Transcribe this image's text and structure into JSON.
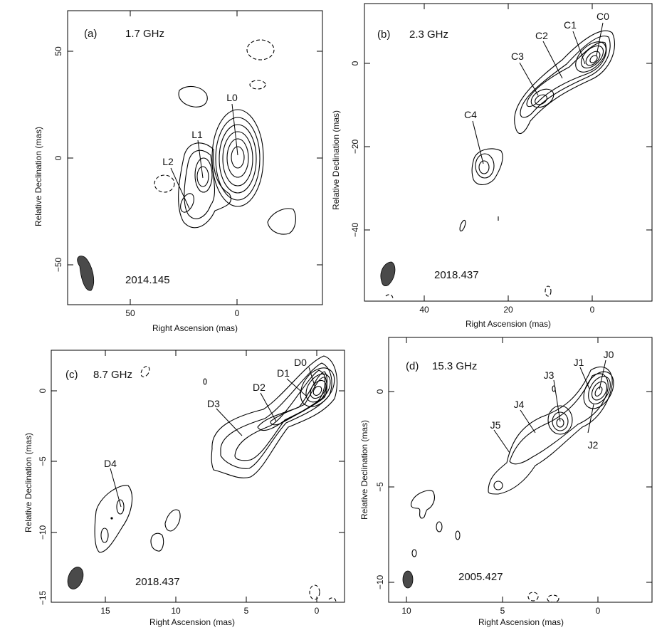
{
  "chart_data": [
    {
      "type": "contour",
      "panel": "(a)",
      "frequency": "1.7 GHz",
      "epoch": "2014.145",
      "xlabel": "Right Ascension  (mas)",
      "ylabel": "Relative Declination  (mas)",
      "x_ticks": [
        "50",
        "0"
      ],
      "y_ticks": [
        "50",
        "0",
        "−50"
      ],
      "components": [
        "L0",
        "L1",
        "L2"
      ]
    },
    {
      "type": "contour",
      "panel": "(b)",
      "frequency": "2.3 GHz",
      "epoch": "2018.437",
      "xlabel": "Right Ascension  (mas)",
      "ylabel": "Relative Declination  (mas)",
      "x_ticks": [
        "40",
        "20",
        "0"
      ],
      "y_ticks": [
        "0",
        "−20",
        "−40"
      ],
      "components": [
        "C0",
        "C1",
        "C2",
        "C3",
        "C4"
      ]
    },
    {
      "type": "contour",
      "panel": "(c)",
      "frequency": "8.7 GHz",
      "epoch": "2018.437",
      "xlabel": "Right Ascension  (mas)",
      "ylabel": "Relative Declination  (mas)",
      "x_ticks": [
        "15",
        "10",
        "5",
        "0"
      ],
      "y_ticks": [
        "0",
        "−5",
        "−10",
        "−15"
      ],
      "components": [
        "D0",
        "D1",
        "D2",
        "D3",
        "D4"
      ]
    },
    {
      "type": "contour",
      "panel": "(d)",
      "frequency": "15.3 GHz",
      "epoch": "2005.427",
      "xlabel": "Right Ascension  (mas)",
      "ylabel": "Relative Declination  (mas)",
      "x_ticks": [
        "10",
        "5",
        "0"
      ],
      "y_ticks": [
        "0",
        "−5",
        "−10"
      ],
      "components": [
        "J0",
        "J1",
        "J2",
        "J3",
        "J4",
        "J5"
      ]
    }
  ]
}
